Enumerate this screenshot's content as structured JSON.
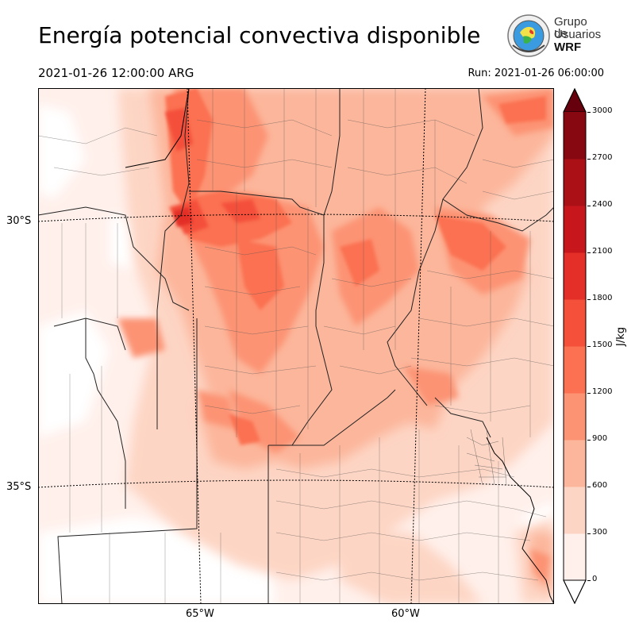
{
  "header": {
    "title": "Energía potencial convectiva disponible",
    "valid_time": "2021-01-26 12:00:00 ARG",
    "run_time": "Run: 2021-01-26 06:00:00"
  },
  "logo": {
    "line1": "Grupo de",
    "line2": "Usuarios",
    "line3": "WRF"
  },
  "axes": {
    "lat_labels": [
      "30°S",
      "35°S"
    ],
    "lon_labels": [
      "65°W",
      "60°W"
    ]
  },
  "colorbar": {
    "label": "J/kg",
    "ticks": [
      "0",
      "300",
      "600",
      "900",
      "1200",
      "1500",
      "1800",
      "2100",
      "2400",
      "2700",
      "3000"
    ],
    "colors": [
      "#fff0eb",
      "#fdd5c4",
      "#fcb69b",
      "#fc9373",
      "#fb7151",
      "#f4503a",
      "#e32f27",
      "#c7171c",
      "#aa1016",
      "#870811"
    ],
    "over_color": "#67000d",
    "under_color": "#ffffff"
  },
  "chart_data": {
    "type": "heatmap",
    "variable": "CAPE",
    "units": "J/kg",
    "levels": [
      0,
      300,
      600,
      900,
      1200,
      1500,
      1800,
      2100,
      2400,
      2700,
      3000
    ],
    "extend": "both",
    "latitude_gridlines": [
      "30°S",
      "35°S"
    ],
    "longitude_gridlines": [
      "65°W",
      "60°W"
    ]
  }
}
